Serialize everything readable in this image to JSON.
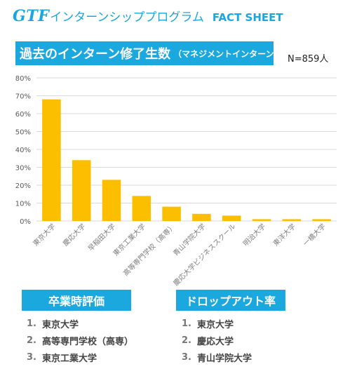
{
  "header": {
    "brand": "GTF",
    "program": "インターンシッププログラム",
    "fact": "FACT SHEET"
  },
  "title": {
    "main": "過去のインターン修了生数",
    "sub": "（マネジメントインターン）"
  },
  "count_label": "N=859人",
  "colors": {
    "accent": "#1ba8df",
    "bar": "#fcbf00",
    "grid": "#d9d9d9",
    "text": "#595959"
  },
  "chart_data": {
    "type": "bar",
    "categories": [
      "東京大学",
      "慶応大学",
      "早稲田大学",
      "東京工業大学",
      "高等専門学校（高専）",
      "青山学院大学",
      "慶応大学ビジネススクール",
      "明治大学",
      "東洋大学",
      "一橋大学"
    ],
    "values": [
      68,
      34,
      23,
      14,
      8,
      4,
      3,
      1,
      1,
      1
    ],
    "y_ticks": [
      "0%",
      "10%",
      "20%",
      "30%",
      "40%",
      "50%",
      "60%",
      "70%",
      "80%"
    ],
    "ylim": [
      0,
      80
    ],
    "grid": true,
    "legend": false
  },
  "graduation_eval": {
    "title": "卒業時評価",
    "items": [
      {
        "rank": "1.",
        "name": "東京大学"
      },
      {
        "rank": "2.",
        "name": "高等専門学校（高専）"
      },
      {
        "rank": "3.",
        "name": "東京工業大学"
      }
    ]
  },
  "dropout_rate": {
    "title": "ドロップアウト率",
    "items": [
      {
        "rank": "1.",
        "name": "東京大学"
      },
      {
        "rank": "2.",
        "name": "慶応大学"
      },
      {
        "rank": "3.",
        "name": "青山学院大学"
      }
    ]
  }
}
